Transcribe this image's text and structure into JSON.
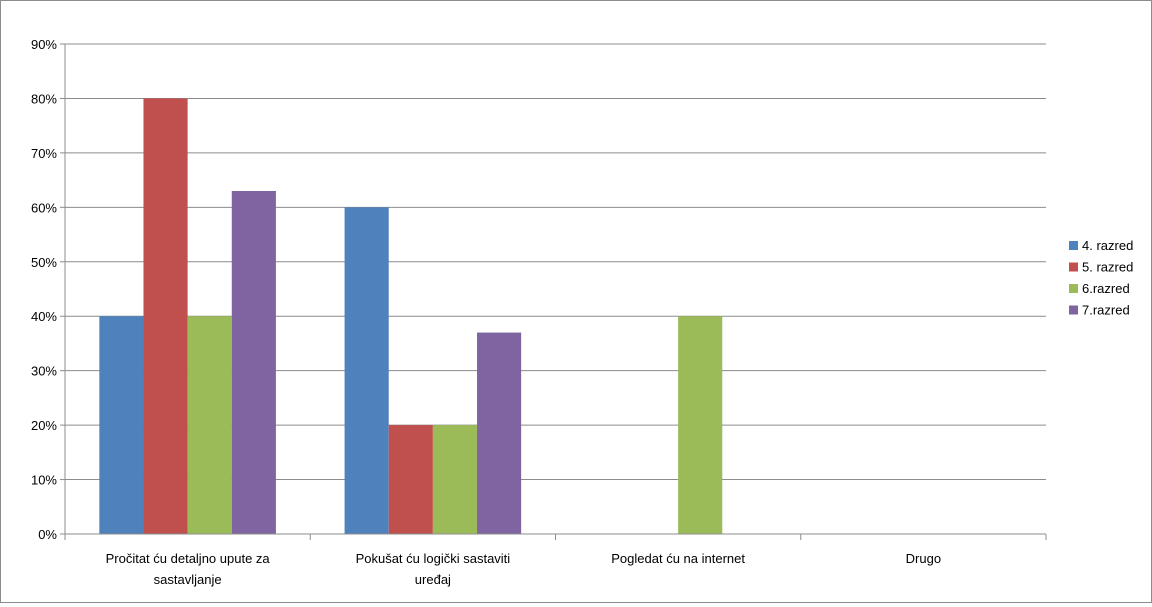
{
  "chart_data": {
    "type": "bar",
    "title": "",
    "xlabel": "",
    "ylabel": "",
    "ylim": [
      0,
      90
    ],
    "y_ticks": [
      "0%",
      "10%",
      "20%",
      "30%",
      "40%",
      "50%",
      "60%",
      "70%",
      "80%",
      "90%"
    ],
    "grid": true,
    "legend_position": "right",
    "categories": [
      [
        "Pročitat ću detaljno upute za",
        "sastavljanje"
      ],
      [
        "Pokušat ću logički sastaviti",
        "uređaj"
      ],
      [
        "Pogledat ću na internet"
      ],
      [
        "Drugo"
      ]
    ],
    "series": [
      {
        "name": "4. razred",
        "color": "#4f81bd",
        "values": [
          40,
          60,
          0,
          0
        ]
      },
      {
        "name": "5. razred",
        "color": "#c0504d",
        "values": [
          80,
          20,
          0,
          0
        ]
      },
      {
        "name": "6.razred",
        "color": "#9bbb59",
        "values": [
          40,
          20,
          40,
          0
        ]
      },
      {
        "name": "7.razred",
        "color": "#8064a2",
        "values": [
          63,
          37,
          0,
          0
        ]
      }
    ]
  }
}
